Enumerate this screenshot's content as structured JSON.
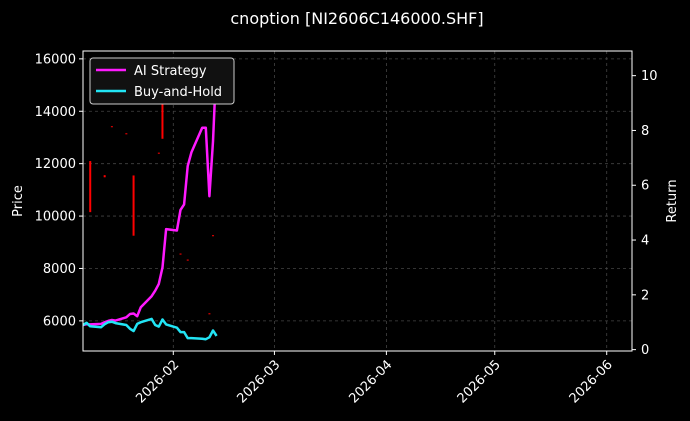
{
  "chart_data": {
    "type": "line",
    "title": "cnoption [NI2606C146000.SHF]",
    "ylabel": "Price",
    "ylabel_right": "Return",
    "xlim": [
      "2026-01-07",
      "2026-06-08"
    ],
    "ylim": [
      4850,
      16300
    ],
    "ylim_right": [
      -0.05,
      10.9
    ],
    "x_ticks": [
      "2026-02-01",
      "2026-03-01",
      "2026-04-01",
      "2026-05-01",
      "2026-06-01"
    ],
    "x_tick_labels": [
      "2026-02",
      "2026-03",
      "2026-04",
      "2026-05",
      "2026-06"
    ],
    "y_ticks": [
      6000,
      8000,
      10000,
      12000,
      14000,
      16000
    ],
    "y_ticks_right": [
      0,
      2,
      4,
      6,
      8,
      10
    ],
    "grid": true,
    "legend_position": "top-left",
    "colors": {
      "background": "#000000",
      "ai": "#ff1aff",
      "bh": "#22e5f5",
      "candle": "#ff0000",
      "grid": "#444444",
      "text": "#ffffff"
    },
    "price_bars": [
      {
        "x": "2026-01-09",
        "low": 10150,
        "high": 12100
      },
      {
        "x": "2026-01-21",
        "low": 9250,
        "high": 11550
      },
      {
        "x": "2026-01-29",
        "low": 12950,
        "high": 14650
      },
      {
        "x": "2026-01-13",
        "low": 11480,
        "high": 11560
      },
      {
        "x": "2026-01-15",
        "low": 13390,
        "high": 13430
      },
      {
        "x": "2026-01-19",
        "low": 13120,
        "high": 13160
      },
      {
        "x": "2026-01-28",
        "low": 12380,
        "high": 12420
      },
      {
        "x": "2026-02-03",
        "low": 8530,
        "high": 8570
      },
      {
        "x": "2026-02-05",
        "low": 8300,
        "high": 8340
      },
      {
        "x": "2026-02-11",
        "low": 6250,
        "high": 6290
      },
      {
        "x": "2026-02-12",
        "low": 9230,
        "high": 9270
      }
    ],
    "series": [
      {
        "name": "AI Strategy",
        "x": [
          "2026-01-07",
          "2026-01-08",
          "2026-01-09",
          "2026-01-12",
          "2026-01-13",
          "2026-01-14",
          "2026-01-15",
          "2026-01-16",
          "2026-01-19",
          "2026-01-20",
          "2026-01-21",
          "2026-01-22",
          "2026-01-23",
          "2026-01-26",
          "2026-01-27",
          "2026-01-28",
          "2026-01-29",
          "2026-01-30",
          "2026-02-02",
          "2026-02-03",
          "2026-02-04",
          "2026-02-05",
          "2026-02-06",
          "2026-02-09",
          "2026-02-10",
          "2026-02-11",
          "2026-02-12",
          "2026-02-13"
        ],
        "values": [
          0.9,
          0.93,
          0.92,
          0.94,
          1.0,
          1.05,
          1.08,
          1.06,
          1.18,
          1.3,
          1.32,
          1.22,
          1.55,
          1.95,
          2.15,
          2.4,
          3.0,
          4.4,
          4.35,
          5.1,
          5.3,
          6.7,
          7.2,
          8.1,
          8.1,
          5.6,
          7.6,
          10.6
        ]
      },
      {
        "name": "Buy-and-Hold",
        "x": [
          "2026-01-07",
          "2026-01-08",
          "2026-01-09",
          "2026-01-12",
          "2026-01-13",
          "2026-01-14",
          "2026-01-15",
          "2026-01-16",
          "2026-01-19",
          "2026-01-20",
          "2026-01-21",
          "2026-01-22",
          "2026-01-23",
          "2026-01-26",
          "2026-01-27",
          "2026-01-28",
          "2026-01-29",
          "2026-01-30",
          "2026-02-02",
          "2026-02-03",
          "2026-02-04",
          "2026-02-05",
          "2026-02-06",
          "2026-02-09",
          "2026-02-10",
          "2026-02-11",
          "2026-02-12",
          "2026-02-13"
        ],
        "values": [
          0.9,
          0.98,
          0.85,
          0.82,
          0.93,
          1.0,
          1.02,
          0.97,
          0.9,
          0.76,
          0.68,
          0.94,
          1.0,
          1.12,
          0.9,
          0.84,
          1.1,
          0.92,
          0.8,
          0.64,
          0.64,
          0.42,
          0.42,
          0.4,
          0.38,
          0.45,
          0.7,
          0.5
        ]
      }
    ]
  }
}
